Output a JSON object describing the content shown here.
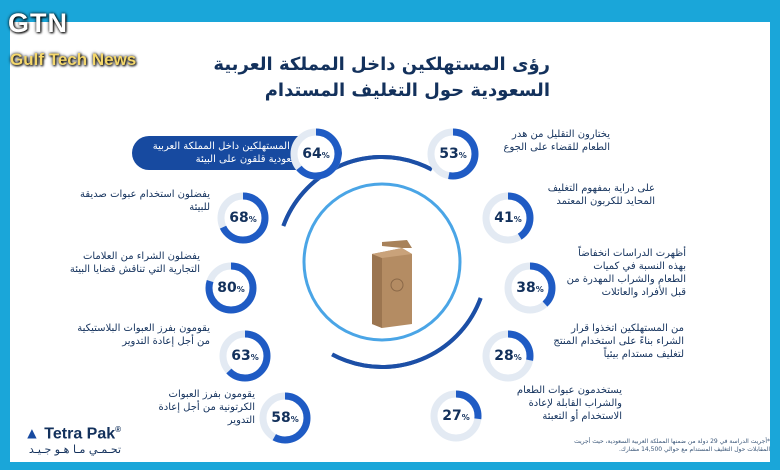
{
  "watermark": {
    "brand": "GTN",
    "subtitle": "Gulf Tech News"
  },
  "title": {
    "line1": "رؤى المستهلكين داخل المملكة العربية",
    "line2": "السعودية حول التغليف المستدام"
  },
  "left_stats": [
    {
      "value": "64",
      "unit": "%",
      "text": "من المستهلكين داخل المملكة العربية السعودية قلقون على البيئة",
      "fraction": 0.64
    },
    {
      "value": "68",
      "unit": "%",
      "text": "يفضلون استخدام عبوات صديقة للبيئة",
      "fraction": 0.68
    },
    {
      "value": "80",
      "unit": "%",
      "text": "يفضلون الشراء من العلامات التجارية التي تناقش قضايا البيئة",
      "fraction": 0.8
    },
    {
      "value": "63",
      "unit": "%",
      "text": "يقومون بفرز العبوات البلاستيكية من أجل إعادة التدوير",
      "fraction": 0.63
    },
    {
      "value": "58",
      "unit": "%",
      "text": "يقومون بفرز العبوات الكرتونية من أجل إعادة التدوير",
      "fraction": 0.58
    }
  ],
  "right_stats": [
    {
      "value": "53",
      "unit": "%",
      "text": "يختارون التقليل من هدر الطعام للقضاء على الجوع",
      "fraction": 0.53
    },
    {
      "value": "41",
      "unit": "%",
      "text": "على دراية بمفهوم التغليف المحايد للكربون المعتمد",
      "fraction": 0.41
    },
    {
      "value": "38",
      "unit": "%",
      "text": "أظهرت الدراسات انخفاضاً بهذه النسبة في كميات الطعام والشراب المهدرة من قبل الأفراد والعائلات",
      "fraction": 0.38
    },
    {
      "value": "28",
      "unit": "%",
      "text": "من المستهلكين اتخذوا قرار الشراء بناءً على استخدام المنتج لتغليف مستدام بيئياً",
      "fraction": 0.28
    },
    {
      "value": "27",
      "unit": "%",
      "text": "يستخدمون عبوات الطعام والشراب القابلة لإعادة الاستخدام أو التعبئة",
      "fraction": 0.27
    }
  ],
  "logo": {
    "name": "Tetra Pak",
    "reg": "®",
    "tagline": "تحـمـي مـا هـو جـيـد"
  },
  "footnote": "*أجريت الدراسة في 29 دولة من ضمنها المملكة العربية السعودية، حيث أجريت المقابلات حول التغليف المستدام مع حوالي 14,500 مشارك.",
  "colors": {
    "frame": "#1aa6d9",
    "navy": "#13315c",
    "accent": "#1f5bc4",
    "ring_track": "#e3eaf3"
  }
}
